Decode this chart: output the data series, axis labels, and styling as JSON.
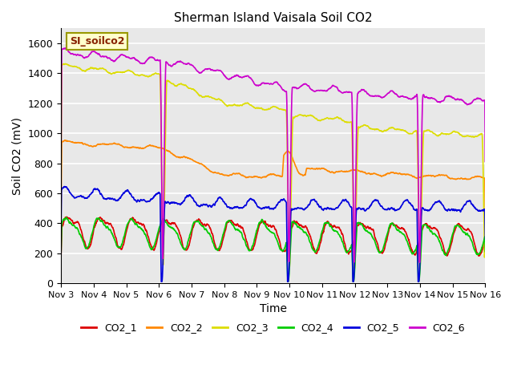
{
  "title": "Sherman Island Vaisala Soil CO2",
  "ylabel": "Soil CO2 (mV)",
  "xlabel": "Time",
  "label_text": "SI_soilco2",
  "ylim": [
    0,
    1700
  ],
  "yticks": [
    0,
    200,
    400,
    600,
    800,
    1000,
    1200,
    1400,
    1600
  ],
  "xtick_labels": [
    "Nov 3",
    "Nov 4",
    "Nov 5",
    "Nov 6",
    "Nov 7",
    "Nov 8",
    "Nov 9",
    "Nov 10",
    "Nov 11",
    "Nov 12",
    "Nov 13",
    "Nov 14",
    "Nov 15",
    "Nov 16"
  ],
  "background_color": "#e8e8e8",
  "line_colors": {
    "CO2_1": "#dd0000",
    "CO2_2": "#ff8800",
    "CO2_3": "#dddd00",
    "CO2_4": "#00cc00",
    "CO2_5": "#0000dd",
    "CO2_6": "#cc00cc"
  },
  "label_box_color": "#ffffcc",
  "label_box_edge": "#999900",
  "label_text_color": "#882200"
}
